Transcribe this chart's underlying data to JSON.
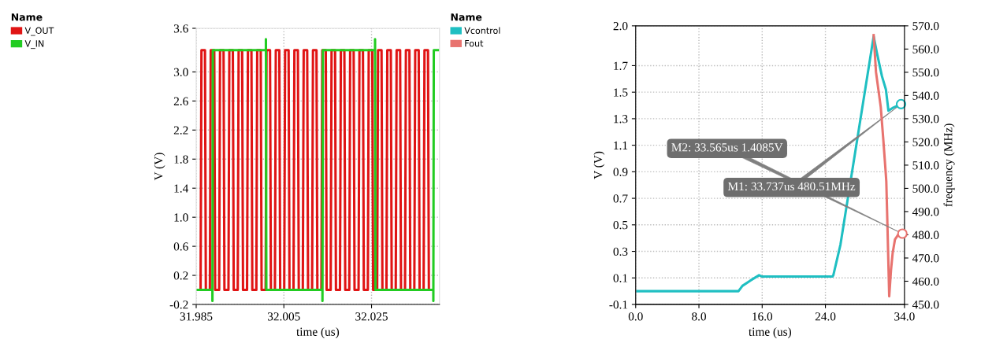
{
  "chart_data": [
    {
      "type": "line",
      "xlabel": "time (us)",
      "ylabel": "V (V)",
      "legend": "left",
      "legend_title": "Name",
      "grid": true,
      "xlim": [
        31.985,
        32.0405
      ],
      "xticks": [
        31.985,
        32.005,
        32.025
      ],
      "ylim": [
        -0.2,
        3.6
      ],
      "yticks": [
        {
          "value": 3.6,
          "label": "3.6"
        },
        {
          "value": 3.0,
          "label": "3.0"
        },
        {
          "value": 2.6,
          "label": "2.6"
        },
        {
          "value": 2.2,
          "label": "2.2"
        },
        {
          "value": 1.8,
          "label": "1.8"
        },
        {
          "value": 1.4,
          "label": "1.4"
        },
        {
          "value": 1.0,
          "label": "1.0"
        },
        {
          "value": 0.6,
          "label": "0.6"
        },
        {
          "value": 0.2,
          "label": "0.2"
        },
        {
          "value": -0.2,
          "label": "-0.2"
        }
      ],
      "series": [
        {
          "name": "V_OUT",
          "color": "#e01414",
          "x": [
            31.9852,
            31.986,
            31.9862,
            31.987,
            31.9872,
            31.98812,
            31.98832,
            31.98912,
            31.98932,
            31.99024,
            31.99044,
            31.99124,
            31.99144,
            31.99236,
            31.99256,
            31.99336,
            31.99356,
            31.99448,
            31.99468,
            31.99548,
            31.99568,
            31.9966,
            31.9968,
            31.9976,
            31.9978,
            31.99872,
            31.99892,
            31.99972,
            31.99992,
            32.00084,
            32.00104,
            32.00184,
            32.00204,
            32.00296,
            32.00316,
            32.00396,
            32.00416,
            32.00508,
            32.00528,
            32.00608,
            32.00628,
            32.0072,
            32.0074,
            32.0082,
            32.0084,
            32.00932,
            32.00952,
            32.01032,
            32.01052,
            32.01144,
            32.01164,
            32.01244,
            32.01264,
            32.01356,
            32.01376,
            32.01456,
            32.01476,
            32.01568,
            32.01588,
            32.01668,
            32.01688,
            32.0178,
            32.018,
            32.0188,
            32.019,
            32.01992,
            32.02012,
            32.02092,
            32.02112,
            32.02204,
            32.02224,
            32.02304,
            32.02324,
            32.02416,
            32.02436,
            32.02516,
            32.02536,
            32.02628,
            32.02648,
            32.02728,
            32.02748,
            32.0284,
            32.0286,
            32.0294,
            32.0296,
            32.03052,
            32.03072,
            32.03152,
            32.03172,
            32.03264,
            32.03284,
            32.03364,
            32.03384,
            32.03476,
            32.03496,
            32.03576,
            32.03596,
            32.03688,
            32.03708,
            32.03788,
            32.03808,
            32.039
          ],
          "values": [
            0,
            0,
            3.3,
            3.3,
            0,
            0,
            3.3,
            3.3,
            0,
            0,
            3.3,
            3.3,
            0,
            0,
            3.3,
            3.3,
            0,
            0,
            3.3,
            3.3,
            0,
            0,
            3.3,
            3.3,
            0,
            0,
            3.3,
            3.3,
            0,
            0,
            3.3,
            3.3,
            0,
            0,
            3.3,
            3.3,
            0,
            0,
            3.3,
            3.3,
            0,
            0,
            3.3,
            3.3,
            0,
            0,
            3.3,
            3.3,
            0,
            0,
            3.3,
            3.3,
            0,
            0,
            3.3,
            3.3,
            0,
            0,
            3.3,
            3.3,
            0,
            0,
            3.3,
            3.3,
            0,
            0,
            3.3,
            3.3,
            0,
            0,
            3.3,
            3.3,
            0,
            0,
            3.3,
            3.3,
            0,
            0,
            3.3,
            3.3,
            0,
            0,
            3.3,
            3.3,
            0,
            0,
            3.3,
            3.3,
            0,
            0,
            3.3,
            3.3,
            0,
            0,
            3.3,
            3.3,
            0,
            0,
            3.3,
            3.3,
            0,
            0
          ]
        },
        {
          "name": "V_IN",
          "color": "#22cc22",
          "x": [
            31.9852,
            31.9887,
            31.9887,
            31.9888,
            32.0009,
            32.0009,
            32.001,
            32.0138,
            32.0138,
            32.0139,
            32.0258,
            32.0258,
            32.0259,
            32.0391,
            32.0391,
            32.0392,
            32.0404
          ],
          "values": [
            0,
            0,
            -0.15,
            3.3,
            3.3,
            3.45,
            0,
            0,
            -0.15,
            3.3,
            3.3,
            3.45,
            0,
            0,
            -0.15,
            3.3,
            3.3
          ]
        }
      ]
    },
    {
      "type": "line",
      "xlabel": "time (us)",
      "ylabel": "V (V)",
      "y2label": "frequency (MHz)",
      "legend": "left",
      "legend_title": "Name",
      "grid": true,
      "xlim": [
        0,
        34.0
      ],
      "xticks": [
        {
          "value": 0,
          "label": "0.0"
        },
        {
          "value": 8,
          "label": "8.0"
        },
        {
          "value": 16,
          "label": "16.0"
        },
        {
          "value": 24,
          "label": "24.0"
        },
        {
          "value": 34,
          "label": "34.0"
        }
      ],
      "ylim": [
        -0.1,
        2.0
      ],
      "yticks": [
        {
          "value": 2.0,
          "label": "2.0"
        },
        {
          "value": 1.7,
          "label": "1.7"
        },
        {
          "value": 1.5,
          "label": "1.5"
        },
        {
          "value": 1.3,
          "label": "1.3"
        },
        {
          "value": 1.1,
          "label": "1.1"
        },
        {
          "value": 0.9,
          "label": "0.9"
        },
        {
          "value": 0.7,
          "label": "0.7"
        },
        {
          "value": 0.5,
          "label": "0.5"
        },
        {
          "value": 0.3,
          "label": "0.3"
        },
        {
          "value": 0.1,
          "label": "0.1"
        },
        {
          "value": -0.1,
          "label": "-0.1"
        }
      ],
      "y2lim": [
        450,
        570
      ],
      "y2ticks": [
        {
          "value": 450,
          "label": "450.0"
        },
        {
          "value": 460,
          "label": "460.0"
        },
        {
          "value": 470,
          "label": "470.0"
        },
        {
          "value": 480,
          "label": "480.0"
        },
        {
          "value": 490,
          "label": "490.0"
        },
        {
          "value": 500,
          "label": "500.0"
        },
        {
          "value": 510,
          "label": "510.0"
        },
        {
          "value": 520,
          "label": "520.0"
        },
        {
          "value": 530,
          "label": "530.0"
        },
        {
          "value": 540,
          "label": "540.0"
        },
        {
          "value": 550,
          "label": "550.0"
        },
        {
          "value": 560,
          "label": "560.0"
        },
        {
          "value": 570,
          "label": "570.0"
        }
      ],
      "series": [
        {
          "name": "Vcontrol",
          "color": "#1fbfc2",
          "axis": "y",
          "x": [
            0,
            13.0,
            13.5,
            14.5,
            15.6,
            16.0,
            24.9,
            25.0,
            25.9,
            30.1,
            30.5,
            31.15,
            31.65,
            31.97,
            32.47,
            33.565
          ],
          "values": [
            0.0,
            0.0,
            0.04,
            0.08,
            0.12,
            0.11,
            0.11,
            0.12,
            0.35,
            1.92,
            1.8,
            1.62,
            1.52,
            1.36,
            1.38,
            1.41
          ]
        },
        {
          "name": "Fout",
          "color": "#e8736f",
          "axis": "y2",
          "x": [
            30.1,
            30.4,
            30.8,
            31.0,
            31.3,
            31.6,
            31.7,
            31.8,
            32.07,
            32.3,
            32.5,
            32.8,
            33.2,
            33.737
          ],
          "values": [
            566,
            550,
            540,
            535,
            522,
            508,
            503,
            490,
            453.5,
            465,
            472,
            478,
            480,
            480.5
          ]
        }
      ],
      "annotations": [
        "M2: 33.565us 1.4085V",
        "M1: 33.737us 480.51MHz"
      ]
    }
  ]
}
